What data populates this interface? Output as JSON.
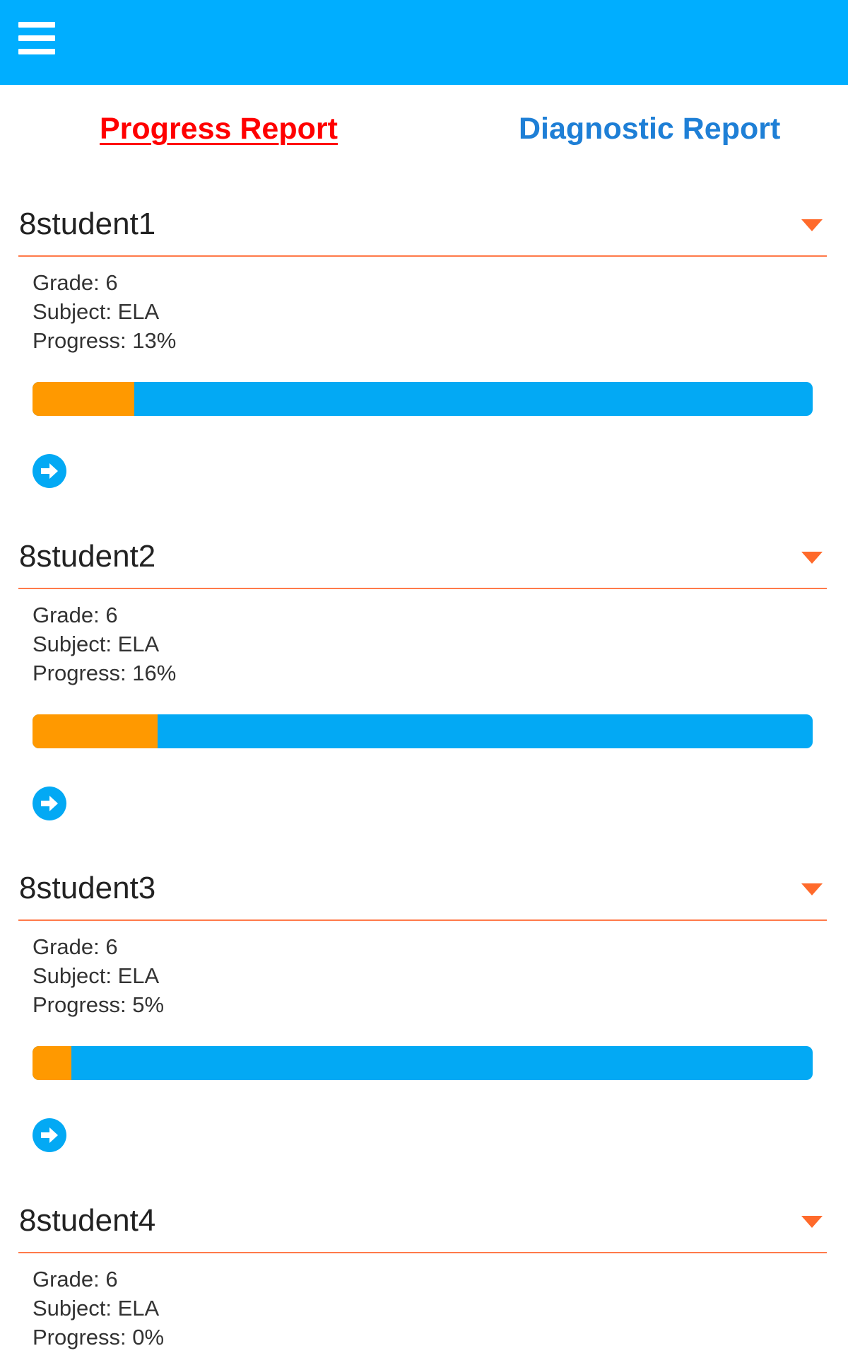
{
  "header": {
    "menu_icon": "hamburger-menu-icon",
    "color": "#00AEFF"
  },
  "tabs": [
    {
      "label": "Progress Report",
      "active": true,
      "color": "#FF0000"
    },
    {
      "label": "Diagnostic Report",
      "active": false,
      "color": "#1E7FD6"
    }
  ],
  "students": [
    {
      "name": "8student1",
      "grade": "Grade: 6",
      "subject": "Subject: ELA",
      "progress_text": "Progress: 13%",
      "progress": 13
    },
    {
      "name": "8student2",
      "grade": "Grade: 6",
      "subject": "Subject: ELA",
      "progress_text": "Progress: 16%",
      "progress": 16
    },
    {
      "name": "8student3",
      "grade": "Grade: 6",
      "subject": "Subject: ELA",
      "progress_text": "Progress: 5%",
      "progress": 5
    },
    {
      "name": "8student4",
      "grade": "Grade: 6",
      "subject": "Subject: ELA",
      "progress_text": "Progress: 0%",
      "progress": 0
    }
  ],
  "colors": {
    "progress_fill": "#FF9900",
    "progress_track": "#03A9F4",
    "divider": "#FF7A4A",
    "caret": "#FF6A2B"
  }
}
